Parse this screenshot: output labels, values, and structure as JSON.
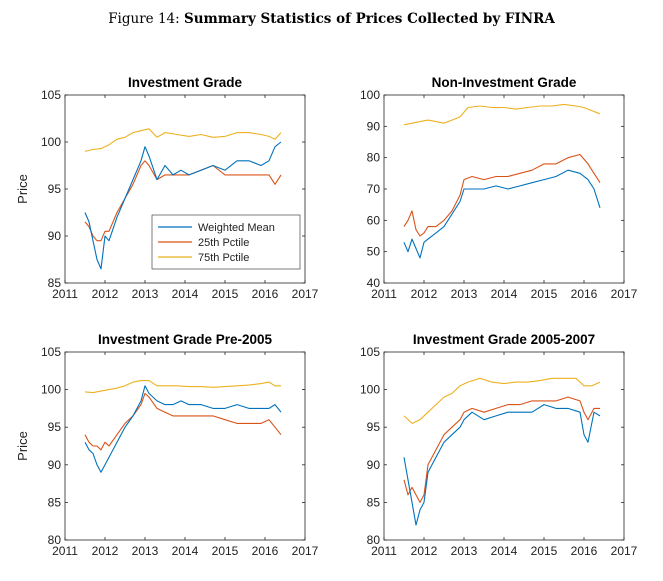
{
  "figure": {
    "label": "Figure 14:",
    "title": "Summary Statistics of Prices Collected by FINRA"
  },
  "colors": {
    "weighted_mean": "#0072BD",
    "p25": "#D95319",
    "p75": "#EDB120"
  },
  "chart_data": [
    {
      "type": "line",
      "title": "Investment Grade",
      "ylabel": "Price",
      "xlim": [
        2011,
        2017
      ],
      "ylim": [
        85,
        105
      ],
      "yticks": [
        85,
        90,
        95,
        100,
        105
      ],
      "xticks": [
        2011,
        2012,
        2013,
        2014,
        2015,
        2016,
        2017
      ],
      "legend": "bottom-right",
      "series": [
        {
          "name": "Weighted Mean",
          "key": "weighted_mean",
          "x": [
            2011.5,
            2011.6,
            2011.7,
            2011.8,
            2011.9,
            2012.0,
            2012.1,
            2012.3,
            2012.5,
            2012.7,
            2012.9,
            2013.0,
            2013.1,
            2013.3,
            2013.5,
            2013.7,
            2013.9,
            2014.1,
            2014.4,
            2014.7,
            2015.0,
            2015.3,
            2015.6,
            2015.9,
            2016.1,
            2016.25,
            2016.4
          ],
          "y": [
            92.5,
            91.5,
            89.5,
            87.5,
            86.5,
            90,
            89.5,
            92,
            94,
            96,
            98,
            99.5,
            98.5,
            96,
            97.5,
            96.5,
            97,
            96.5,
            97,
            97.5,
            97,
            98,
            98,
            97.5,
            98,
            99.5,
            100
          ]
        },
        {
          "name": "25th Pctile",
          "key": "p25",
          "x": [
            2011.5,
            2011.6,
            2011.7,
            2011.8,
            2011.9,
            2012.0,
            2012.1,
            2012.3,
            2012.5,
            2012.7,
            2012.9,
            2013.0,
            2013.1,
            2013.3,
            2013.5,
            2013.7,
            2013.9,
            2014.1,
            2014.4,
            2014.7,
            2015.0,
            2015.3,
            2015.6,
            2015.9,
            2016.1,
            2016.25,
            2016.4
          ],
          "y": [
            91.5,
            91,
            90,
            89.5,
            89.5,
            90.5,
            90.5,
            92.5,
            94,
            95.5,
            97.5,
            98,
            97.5,
            96,
            96.5,
            96.5,
            96.5,
            96.5,
            97,
            97.5,
            96.5,
            96.5,
            96.5,
            96.5,
            96.5,
            95.5,
            96.5
          ]
        },
        {
          "name": "75th Pctile",
          "key": "p75",
          "x": [
            2011.5,
            2011.7,
            2011.9,
            2012.1,
            2012.3,
            2012.5,
            2012.7,
            2012.9,
            2013.1,
            2013.3,
            2013.5,
            2013.8,
            2014.1,
            2014.4,
            2014.7,
            2015.0,
            2015.3,
            2015.6,
            2015.9,
            2016.1,
            2016.25,
            2016.4
          ],
          "y": [
            99,
            99.2,
            99.3,
            99.7,
            100.3,
            100.5,
            101,
            101.2,
            101.4,
            100.5,
            101,
            100.8,
            100.6,
            100.8,
            100.5,
            100.6,
            101,
            101,
            100.8,
            100.6,
            100.3,
            101
          ]
        }
      ]
    },
    {
      "type": "line",
      "title": "Non-Investment Grade",
      "ylabel": "",
      "xlim": [
        2011,
        2017
      ],
      "ylim": [
        40,
        100
      ],
      "yticks": [
        40,
        50,
        60,
        70,
        80,
        90,
        100
      ],
      "xticks": [
        2011,
        2012,
        2013,
        2014,
        2015,
        2016,
        2017
      ],
      "series": [
        {
          "name": "Weighted Mean",
          "key": "weighted_mean",
          "x": [
            2011.5,
            2011.6,
            2011.7,
            2011.8,
            2011.9,
            2012.0,
            2012.1,
            2012.3,
            2012.5,
            2012.7,
            2012.9,
            2013.0,
            2013.2,
            2013.5,
            2013.8,
            2014.1,
            2014.4,
            2014.7,
            2015.0,
            2015.3,
            2015.6,
            2015.9,
            2016.1,
            2016.25,
            2016.4
          ],
          "y": [
            53,
            50,
            54,
            51,
            48,
            53,
            54,
            56,
            58,
            62,
            66,
            70,
            70,
            70,
            71,
            70,
            71,
            72,
            73,
            74,
            76,
            75,
            73,
            70,
            64
          ]
        },
        {
          "name": "25th Pctile",
          "key": "p25",
          "x": [
            2011.5,
            2011.6,
            2011.7,
            2011.8,
            2011.9,
            2012.0,
            2012.1,
            2012.3,
            2012.5,
            2012.7,
            2012.9,
            2013.0,
            2013.2,
            2013.5,
            2013.8,
            2014.1,
            2014.4,
            2014.7,
            2015.0,
            2015.3,
            2015.6,
            2015.9,
            2016.1,
            2016.25,
            2016.4
          ],
          "y": [
            58,
            60,
            63,
            57,
            55,
            56,
            58,
            58,
            60,
            63,
            68,
            73,
            74,
            73,
            74,
            74,
            75,
            76,
            78,
            78,
            80,
            81,
            78,
            75,
            72
          ]
        },
        {
          "name": "75th Pctile",
          "key": "p75",
          "x": [
            2011.5,
            2011.7,
            2011.9,
            2012.1,
            2012.3,
            2012.5,
            2012.7,
            2012.9,
            2013.1,
            2013.4,
            2013.7,
            2014.0,
            2014.3,
            2014.6,
            2014.9,
            2015.2,
            2015.5,
            2015.8,
            2016.0,
            2016.2,
            2016.4
          ],
          "y": [
            90.5,
            91,
            91.5,
            92,
            91.5,
            91,
            92,
            93,
            96,
            96.5,
            96,
            96,
            95.5,
            96,
            96.5,
            96.5,
            97,
            96.5,
            96,
            95,
            94
          ]
        }
      ]
    },
    {
      "type": "line",
      "title": "Investment Grade Pre-2005",
      "ylabel": "Price",
      "xlim": [
        2011,
        2017
      ],
      "ylim": [
        80,
        105
      ],
      "yticks": [
        80,
        85,
        90,
        95,
        100,
        105
      ],
      "xticks": [
        2011,
        2012,
        2013,
        2014,
        2015,
        2016,
        2017
      ],
      "series": [
        {
          "name": "Weighted Mean",
          "key": "weighted_mean",
          "x": [
            2011.5,
            2011.6,
            2011.7,
            2011.8,
            2011.9,
            2012.0,
            2012.1,
            2012.3,
            2012.5,
            2012.7,
            2012.9,
            2013.0,
            2013.1,
            2013.3,
            2013.5,
            2013.7,
            2013.9,
            2014.1,
            2014.4,
            2014.7,
            2015.0,
            2015.3,
            2015.6,
            2015.9,
            2016.1,
            2016.25,
            2016.4
          ],
          "y": [
            93,
            92,
            91.5,
            90,
            89,
            90,
            91,
            93,
            95,
            96.5,
            98.5,
            100.5,
            99.5,
            98.5,
            98,
            98,
            98.5,
            98,
            98,
            97.5,
            97.5,
            98,
            97.5,
            97.5,
            97.5,
            98,
            97
          ]
        },
        {
          "name": "25th Pctile",
          "key": "p25",
          "x": [
            2011.5,
            2011.6,
            2011.7,
            2011.8,
            2011.9,
            2012.0,
            2012.1,
            2012.3,
            2012.5,
            2012.7,
            2012.9,
            2013.0,
            2013.1,
            2013.3,
            2013.5,
            2013.7,
            2013.9,
            2014.1,
            2014.4,
            2014.7,
            2015.0,
            2015.3,
            2015.6,
            2015.9,
            2016.1,
            2016.25,
            2016.4
          ],
          "y": [
            94,
            93,
            92.5,
            92.5,
            92,
            93,
            92.5,
            94,
            95.5,
            96.5,
            98,
            99.5,
            99,
            97.5,
            97,
            96.5,
            96.5,
            96.5,
            96.5,
            96.5,
            96,
            95.5,
            95.5,
            95.5,
            96,
            95,
            94
          ]
        },
        {
          "name": "75th Pctile",
          "key": "p75",
          "x": [
            2011.5,
            2011.7,
            2011.9,
            2012.1,
            2012.3,
            2012.5,
            2012.7,
            2012.9,
            2013.1,
            2013.3,
            2013.5,
            2013.8,
            2014.1,
            2014.4,
            2014.7,
            2015.0,
            2015.3,
            2015.6,
            2015.9,
            2016.1,
            2016.25,
            2016.4
          ],
          "y": [
            99.7,
            99.6,
            99.8,
            100,
            100.2,
            100.5,
            101,
            101.2,
            101.2,
            100.5,
            100.5,
            100.5,
            100.4,
            100.4,
            100.3,
            100.4,
            100.5,
            100.6,
            100.8,
            101,
            100.5,
            100.5
          ]
        }
      ]
    },
    {
      "type": "line",
      "title": "Investment Grade 2005-2007",
      "ylabel": "",
      "xlim": [
        2011,
        2017
      ],
      "ylim": [
        80,
        105
      ],
      "yticks": [
        80,
        85,
        90,
        95,
        100,
        105
      ],
      "xticks": [
        2011,
        2012,
        2013,
        2014,
        2015,
        2016,
        2017
      ],
      "series": [
        {
          "name": "Weighted Mean",
          "key": "weighted_mean",
          "x": [
            2011.5,
            2011.6,
            2011.7,
            2011.8,
            2011.9,
            2012.0,
            2012.1,
            2012.3,
            2012.5,
            2012.7,
            2012.9,
            2013.0,
            2013.2,
            2013.5,
            2013.8,
            2014.1,
            2014.4,
            2014.7,
            2015.0,
            2015.3,
            2015.6,
            2015.9,
            2016.0,
            2016.1,
            2016.25,
            2016.4
          ],
          "y": [
            91,
            88,
            85,
            82,
            84,
            85,
            89,
            91,
            93,
            94,
            95,
            96,
            97,
            96,
            96.5,
            97,
            97,
            97,
            98,
            97.5,
            97.5,
            97,
            94,
            93,
            97,
            96.5
          ]
        },
        {
          "name": "25th Pctile",
          "key": "p25",
          "x": [
            2011.5,
            2011.6,
            2011.7,
            2011.8,
            2011.9,
            2012.0,
            2012.1,
            2012.3,
            2012.5,
            2012.7,
            2012.9,
            2013.0,
            2013.2,
            2013.5,
            2013.8,
            2014.1,
            2014.4,
            2014.7,
            2015.0,
            2015.3,
            2015.6,
            2015.9,
            2016.0,
            2016.1,
            2016.25,
            2016.4
          ],
          "y": [
            88,
            86,
            87,
            86,
            85,
            86,
            90,
            92,
            94,
            95,
            96,
            97,
            97.5,
            97,
            97.5,
            98,
            98,
            98.5,
            98.5,
            98.5,
            99,
            98.5,
            97,
            96,
            97.5,
            97.5
          ]
        },
        {
          "name": "75th Pctile",
          "key": "p75",
          "x": [
            2011.5,
            2011.7,
            2011.9,
            2012.1,
            2012.3,
            2012.5,
            2012.7,
            2012.9,
            2013.1,
            2013.4,
            2013.7,
            2014.0,
            2014.3,
            2014.6,
            2014.9,
            2015.2,
            2015.5,
            2015.8,
            2016.0,
            2016.2,
            2016.4
          ],
          "y": [
            96.5,
            95.5,
            96,
            97,
            98,
            99,
            99.5,
            100.5,
            101,
            101.5,
            101,
            100.8,
            101,
            101,
            101.2,
            101.5,
            101.5,
            101.5,
            100.5,
            100.5,
            101
          ]
        }
      ]
    }
  ]
}
